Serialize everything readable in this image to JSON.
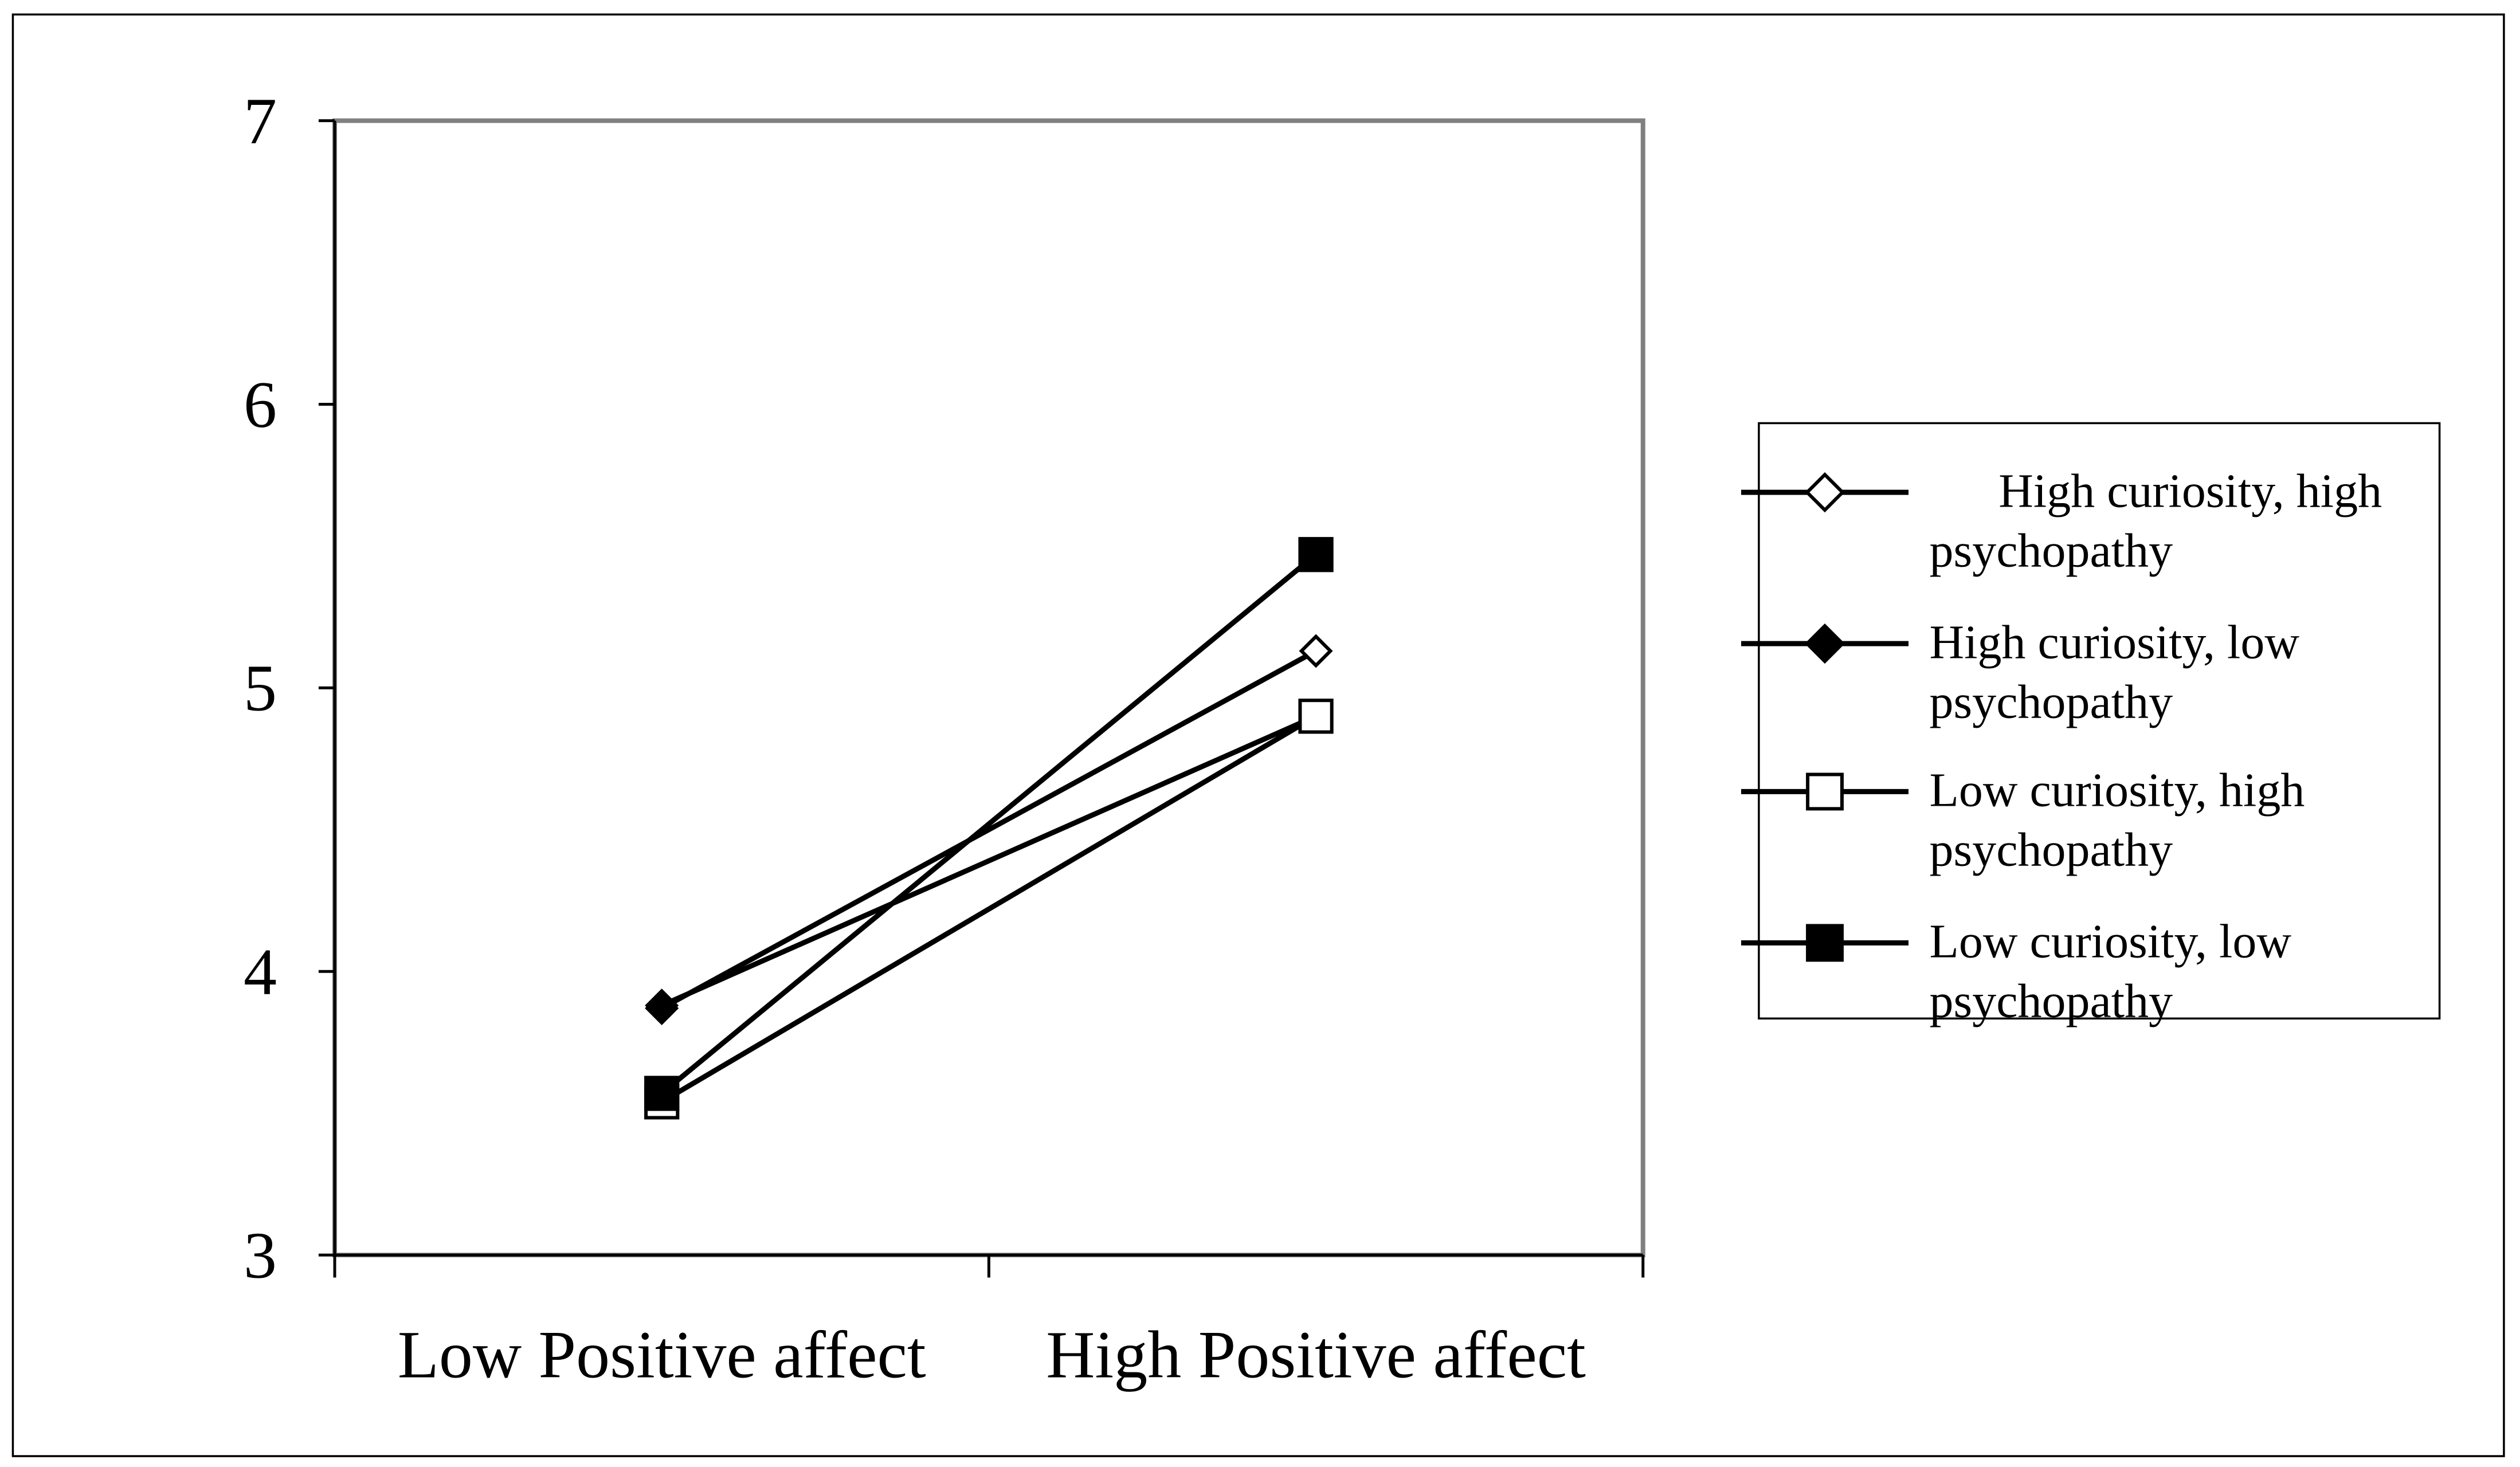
{
  "chart_data": {
    "type": "line",
    "title": "",
    "xlabel": "",
    "ylabel": "",
    "categories": [
      "Low Positive affect",
      "High Positive affect"
    ],
    "ylim": [
      3,
      7
    ],
    "yticks": [
      3,
      4,
      5,
      6,
      7
    ],
    "grid": false,
    "legend_position": "right",
    "series": [
      {
        "name_lines": [
          "High curiosity, high",
          "psychopathy"
        ],
        "marker": "diamond-open",
        "values": [
          3.87,
          5.13
        ]
      },
      {
        "name_lines": [
          "High curiosity, low",
          "psychopathy"
        ],
        "marker": "diamond-filled",
        "values": [
          3.88,
          4.9
        ]
      },
      {
        "name_lines": [
          "Low curiosity, high",
          "psychopathy"
        ],
        "marker": "square-open",
        "values": [
          3.54,
          4.9
        ]
      },
      {
        "name_lines": [
          "Low curiosity, low",
          "psychopathy"
        ],
        "marker": "square-filled",
        "values": [
          3.57,
          5.47
        ]
      }
    ],
    "colors": {
      "line": "#000000",
      "plot_frame": "#808080",
      "background": "#ffffff"
    }
  }
}
